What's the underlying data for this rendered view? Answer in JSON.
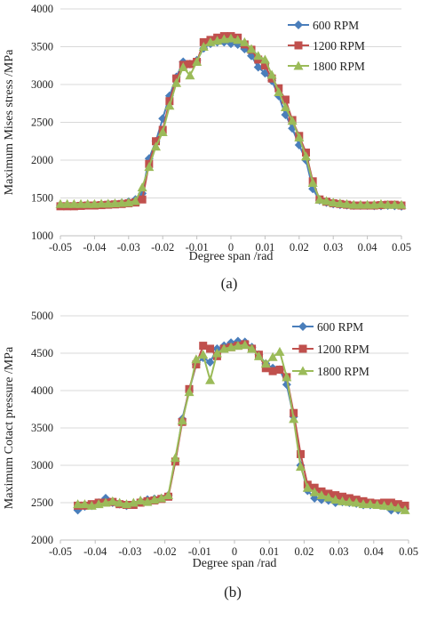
{
  "chart_data": [
    {
      "type": "line",
      "panel_label": "(a)",
      "title": "",
      "xlabel": "Degree span /rad",
      "ylabel": "Maximum Mises stress /MPa",
      "xlim": [
        -0.05,
        0.05
      ],
      "ylim": [
        1000,
        4000
      ],
      "xticks": [
        -0.05,
        -0.04,
        -0.03,
        -0.02,
        -0.01,
        0,
        0.01,
        0.02,
        0.03,
        0.04,
        0.05
      ],
      "xtick_labels": [
        "-0.05",
        "-0.04",
        "-0.03",
        "-0.02",
        "-0.01",
        "0",
        "0.01",
        "0.02",
        "0.03",
        "0.04",
        "0.05"
      ],
      "yticks": [
        1000,
        1500,
        2000,
        2500,
        3000,
        3500,
        4000
      ],
      "ytick_labels": [
        "1000",
        "1500",
        "2000",
        "2500",
        "3000",
        "3500",
        "4000"
      ],
      "grid": "horizontal",
      "legend": "top-right",
      "series": [
        {
          "name": "600 RPM",
          "color": "#4a7ebb",
          "marker": "diamond",
          "x": [
            -0.05,
            -0.048,
            -0.046,
            -0.044,
            -0.042,
            -0.04,
            -0.038,
            -0.036,
            -0.034,
            -0.032,
            -0.03,
            -0.028,
            -0.026,
            -0.024,
            -0.022,
            -0.02,
            -0.018,
            -0.016,
            -0.014,
            -0.012,
            -0.01,
            -0.008,
            -0.006,
            -0.004,
            -0.002,
            0,
            0.002,
            0.004,
            0.006,
            0.008,
            0.01,
            0.012,
            0.014,
            0.016,
            0.018,
            0.02,
            0.022,
            0.024,
            0.026,
            0.028,
            0.03,
            0.032,
            0.034,
            0.036,
            0.038,
            0.04,
            0.042,
            0.044,
            0.046,
            0.048,
            0.05
          ],
          "y": [
            1400,
            1400,
            1400,
            1405,
            1405,
            1410,
            1415,
            1420,
            1425,
            1435,
            1450,
            1480,
            1560,
            2020,
            2250,
            2550,
            2850,
            3100,
            3300,
            3270,
            3320,
            3480,
            3540,
            3560,
            3560,
            3540,
            3530,
            3470,
            3380,
            3230,
            3150,
            3050,
            2850,
            2600,
            2420,
            2200,
            2000,
            1620,
            1470,
            1440,
            1420,
            1410,
            1405,
            1400,
            1400,
            1400,
            1395,
            1395,
            1400,
            1395,
            1390
          ]
        },
        {
          "name": "1200 RPM",
          "color": "#c0504d",
          "marker": "square",
          "x": [
            -0.05,
            -0.048,
            -0.046,
            -0.044,
            -0.042,
            -0.04,
            -0.038,
            -0.036,
            -0.034,
            -0.032,
            -0.03,
            -0.028,
            -0.026,
            -0.024,
            -0.022,
            -0.02,
            -0.018,
            -0.016,
            -0.014,
            -0.012,
            -0.01,
            -0.008,
            -0.006,
            -0.004,
            -0.002,
            0,
            0.002,
            0.004,
            0.006,
            0.008,
            0.01,
            0.012,
            0.014,
            0.016,
            0.018,
            0.02,
            0.022,
            0.024,
            0.026,
            0.028,
            0.03,
            0.032,
            0.034,
            0.036,
            0.038,
            0.04,
            0.042,
            0.044,
            0.046,
            0.048,
            0.05
          ],
          "y": [
            1390,
            1390,
            1390,
            1395,
            1400,
            1400,
            1405,
            1410,
            1415,
            1420,
            1430,
            1440,
            1480,
            1950,
            2250,
            2400,
            2780,
            3080,
            3260,
            3270,
            3300,
            3560,
            3590,
            3620,
            3640,
            3640,
            3620,
            3530,
            3460,
            3330,
            3250,
            3080,
            2950,
            2800,
            2530,
            2320,
            2100,
            1720,
            1480,
            1450,
            1430,
            1420,
            1410,
            1400,
            1400,
            1400,
            1400,
            1405,
            1410,
            1410,
            1400
          ]
        },
        {
          "name": "1800 RPM",
          "color": "#9bbb59",
          "marker": "triangle",
          "x": [
            -0.05,
            -0.048,
            -0.046,
            -0.044,
            -0.042,
            -0.04,
            -0.038,
            -0.036,
            -0.034,
            -0.032,
            -0.03,
            -0.028,
            -0.026,
            -0.024,
            -0.022,
            -0.02,
            -0.018,
            -0.016,
            -0.014,
            -0.012,
            -0.01,
            -0.008,
            -0.006,
            -0.004,
            -0.002,
            0,
            0.002,
            0.004,
            0.006,
            0.008,
            0.01,
            0.012,
            0.014,
            0.016,
            0.018,
            0.02,
            0.022,
            0.024,
            0.026,
            0.028,
            0.03,
            0.032,
            0.034,
            0.036,
            0.038,
            0.04,
            0.042,
            0.044,
            0.046,
            0.048,
            0.05
          ],
          "y": [
            1420,
            1420,
            1420,
            1420,
            1420,
            1420,
            1425,
            1425,
            1430,
            1435,
            1440,
            1460,
            1640,
            1910,
            2180,
            2370,
            2720,
            3020,
            3230,
            3120,
            3300,
            3500,
            3560,
            3580,
            3600,
            3610,
            3590,
            3560,
            3470,
            3380,
            3330,
            3130,
            2900,
            2700,
            2520,
            2300,
            2050,
            1700,
            1480,
            1460,
            1440,
            1430,
            1420,
            1410,
            1410,
            1410,
            1410,
            1420,
            1410,
            1410,
            1410
          ]
        }
      ]
    },
    {
      "type": "line",
      "panel_label": "(b)",
      "title": "",
      "xlabel": "Degree span /rad",
      "ylabel": "Maximum Cotact pressure /MPa",
      "xlim": [
        -0.05,
        0.05
      ],
      "ylim": [
        2000,
        5000
      ],
      "xticks": [
        -0.05,
        -0.04,
        -0.03,
        -0.02,
        -0.01,
        0,
        0.01,
        0.02,
        0.03,
        0.04,
        0.05
      ],
      "xtick_labels": [
        "-0.05",
        "-0.04",
        "-0.03",
        "-0.02",
        "-0.01",
        "0",
        "0.01",
        "0.02",
        "0.03",
        "0.04",
        "0.05"
      ],
      "yticks": [
        2000,
        2500,
        3000,
        3500,
        4000,
        4500,
        5000
      ],
      "ytick_labels": [
        "2000",
        "2500",
        "3000",
        "3500",
        "4000",
        "4500",
        "5000"
      ],
      "grid": "horizontal",
      "legend": "top-right",
      "series": [
        {
          "name": "600 RPM",
          "color": "#4a7ebb",
          "marker": "diamond",
          "x": [
            -0.045,
            -0.043,
            -0.041,
            -0.039,
            -0.037,
            -0.035,
            -0.033,
            -0.031,
            -0.029,
            -0.027,
            -0.025,
            -0.023,
            -0.021,
            -0.019,
            -0.017,
            -0.015,
            -0.013,
            -0.011,
            -0.009,
            -0.007,
            -0.005,
            -0.003,
            -0.001,
            0.001,
            0.003,
            0.005,
            0.007,
            0.009,
            0.011,
            0.013,
            0.015,
            0.017,
            0.019,
            0.021,
            0.023,
            0.025,
            0.027,
            0.029,
            0.031,
            0.033,
            0.035,
            0.037,
            0.039,
            0.041,
            0.043,
            0.045,
            0.047,
            0.049
          ],
          "y": [
            2400,
            2450,
            2460,
            2500,
            2560,
            2500,
            2480,
            2460,
            2480,
            2520,
            2540,
            2550,
            2560,
            2600,
            3050,
            3620,
            4000,
            4350,
            4440,
            4380,
            4560,
            4600,
            4640,
            4660,
            4650,
            4580,
            4480,
            4360,
            4300,
            4280,
            4080,
            3650,
            3000,
            2660,
            2560,
            2540,
            2530,
            2500,
            2510,
            2500,
            2490,
            2470,
            2470,
            2480,
            2460,
            2400,
            2400,
            2420
          ]
        },
        {
          "name": "1200 RPM",
          "color": "#c0504d",
          "marker": "square",
          "x": [
            -0.045,
            -0.043,
            -0.041,
            -0.039,
            -0.037,
            -0.035,
            -0.033,
            -0.031,
            -0.029,
            -0.027,
            -0.025,
            -0.023,
            -0.021,
            -0.019,
            -0.017,
            -0.015,
            -0.013,
            -0.011,
            -0.009,
            -0.007,
            -0.005,
            -0.003,
            -0.001,
            0.001,
            0.003,
            0.005,
            0.007,
            0.009,
            0.011,
            0.013,
            0.015,
            0.017,
            0.019,
            0.021,
            0.023,
            0.025,
            0.027,
            0.029,
            0.031,
            0.033,
            0.035,
            0.037,
            0.039,
            0.041,
            0.043,
            0.045,
            0.047,
            0.049
          ],
          "y": [
            2460,
            2460,
            2480,
            2500,
            2500,
            2510,
            2480,
            2470,
            2470,
            2500,
            2520,
            2530,
            2550,
            2580,
            3050,
            3580,
            4020,
            4350,
            4600,
            4560,
            4460,
            4560,
            4580,
            4600,
            4620,
            4560,
            4480,
            4300,
            4260,
            4280,
            4180,
            3700,
            3150,
            2740,
            2700,
            2650,
            2620,
            2600,
            2580,
            2560,
            2540,
            2520,
            2500,
            2490,
            2500,
            2500,
            2480,
            2460
          ]
        },
        {
          "name": "1800 RPM",
          "color": "#9bbb59",
          "marker": "triangle",
          "x": [
            -0.045,
            -0.043,
            -0.041,
            -0.039,
            -0.037,
            -0.035,
            -0.033,
            -0.031,
            -0.029,
            -0.027,
            -0.025,
            -0.023,
            -0.021,
            -0.019,
            -0.017,
            -0.015,
            -0.013,
            -0.011,
            -0.009,
            -0.007,
            -0.005,
            -0.003,
            -0.001,
            0.001,
            0.003,
            0.005,
            0.007,
            0.009,
            0.011,
            0.013,
            0.015,
            0.017,
            0.019,
            0.021,
            0.023,
            0.025,
            0.027,
            0.029,
            0.031,
            0.033,
            0.035,
            0.037,
            0.039,
            0.041,
            0.043,
            0.045,
            0.047,
            0.049
          ],
          "y": [
            2480,
            2480,
            2460,
            2480,
            2500,
            2520,
            2500,
            2480,
            2500,
            2530,
            2510,
            2540,
            2560,
            2600,
            3100,
            3600,
            3980,
            4420,
            4480,
            4140,
            4500,
            4560,
            4580,
            4600,
            4610,
            4560,
            4460,
            4360,
            4450,
            4520,
            4180,
            3620,
            2980,
            2700,
            2640,
            2600,
            2570,
            2540,
            2520,
            2510,
            2500,
            2480,
            2480,
            2470,
            2460,
            2450,
            2430,
            2400
          ]
        }
      ]
    }
  ]
}
